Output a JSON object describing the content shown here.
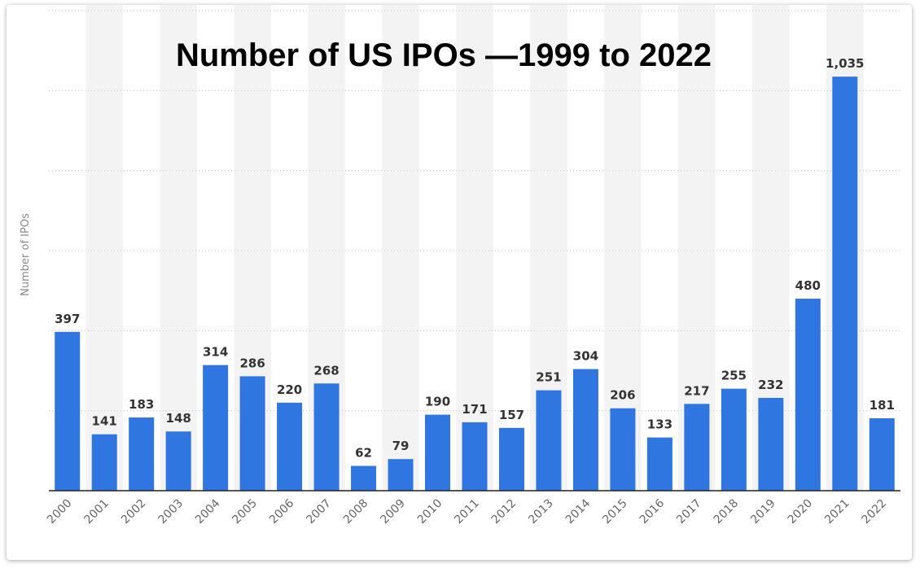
{
  "chart_data": {
    "type": "bar",
    "title": "Number of US IPOs —1999 to 2022",
    "ylabel": "Number of IPOs",
    "xlabel": "",
    "categories": [
      "2000",
      "2001",
      "2002",
      "2003",
      "2004",
      "2005",
      "2006",
      "2007",
      "2008",
      "2009",
      "2010",
      "2011",
      "2012",
      "2013",
      "2014",
      "2015",
      "2016",
      "2017",
      "2018",
      "2019",
      "2020",
      "2021",
      "2022"
    ],
    "values": [
      397,
      141,
      183,
      148,
      314,
      286,
      220,
      268,
      62,
      79,
      190,
      171,
      157,
      251,
      304,
      206,
      133,
      217,
      255,
      232,
      480,
      1035,
      181
    ],
    "value_labels": [
      "397",
      "141",
      "183",
      "148",
      "314",
      "286",
      "220",
      "268",
      "62",
      "79",
      "190",
      "171",
      "157",
      "251",
      "304",
      "206",
      "133",
      "217",
      "255",
      "232",
      "480",
      "1,035",
      "181"
    ],
    "ylim": [
      0,
      1200
    ],
    "grid": true,
    "bar_color": "#2f76e0",
    "stripe_color": "#f3f3f3"
  }
}
